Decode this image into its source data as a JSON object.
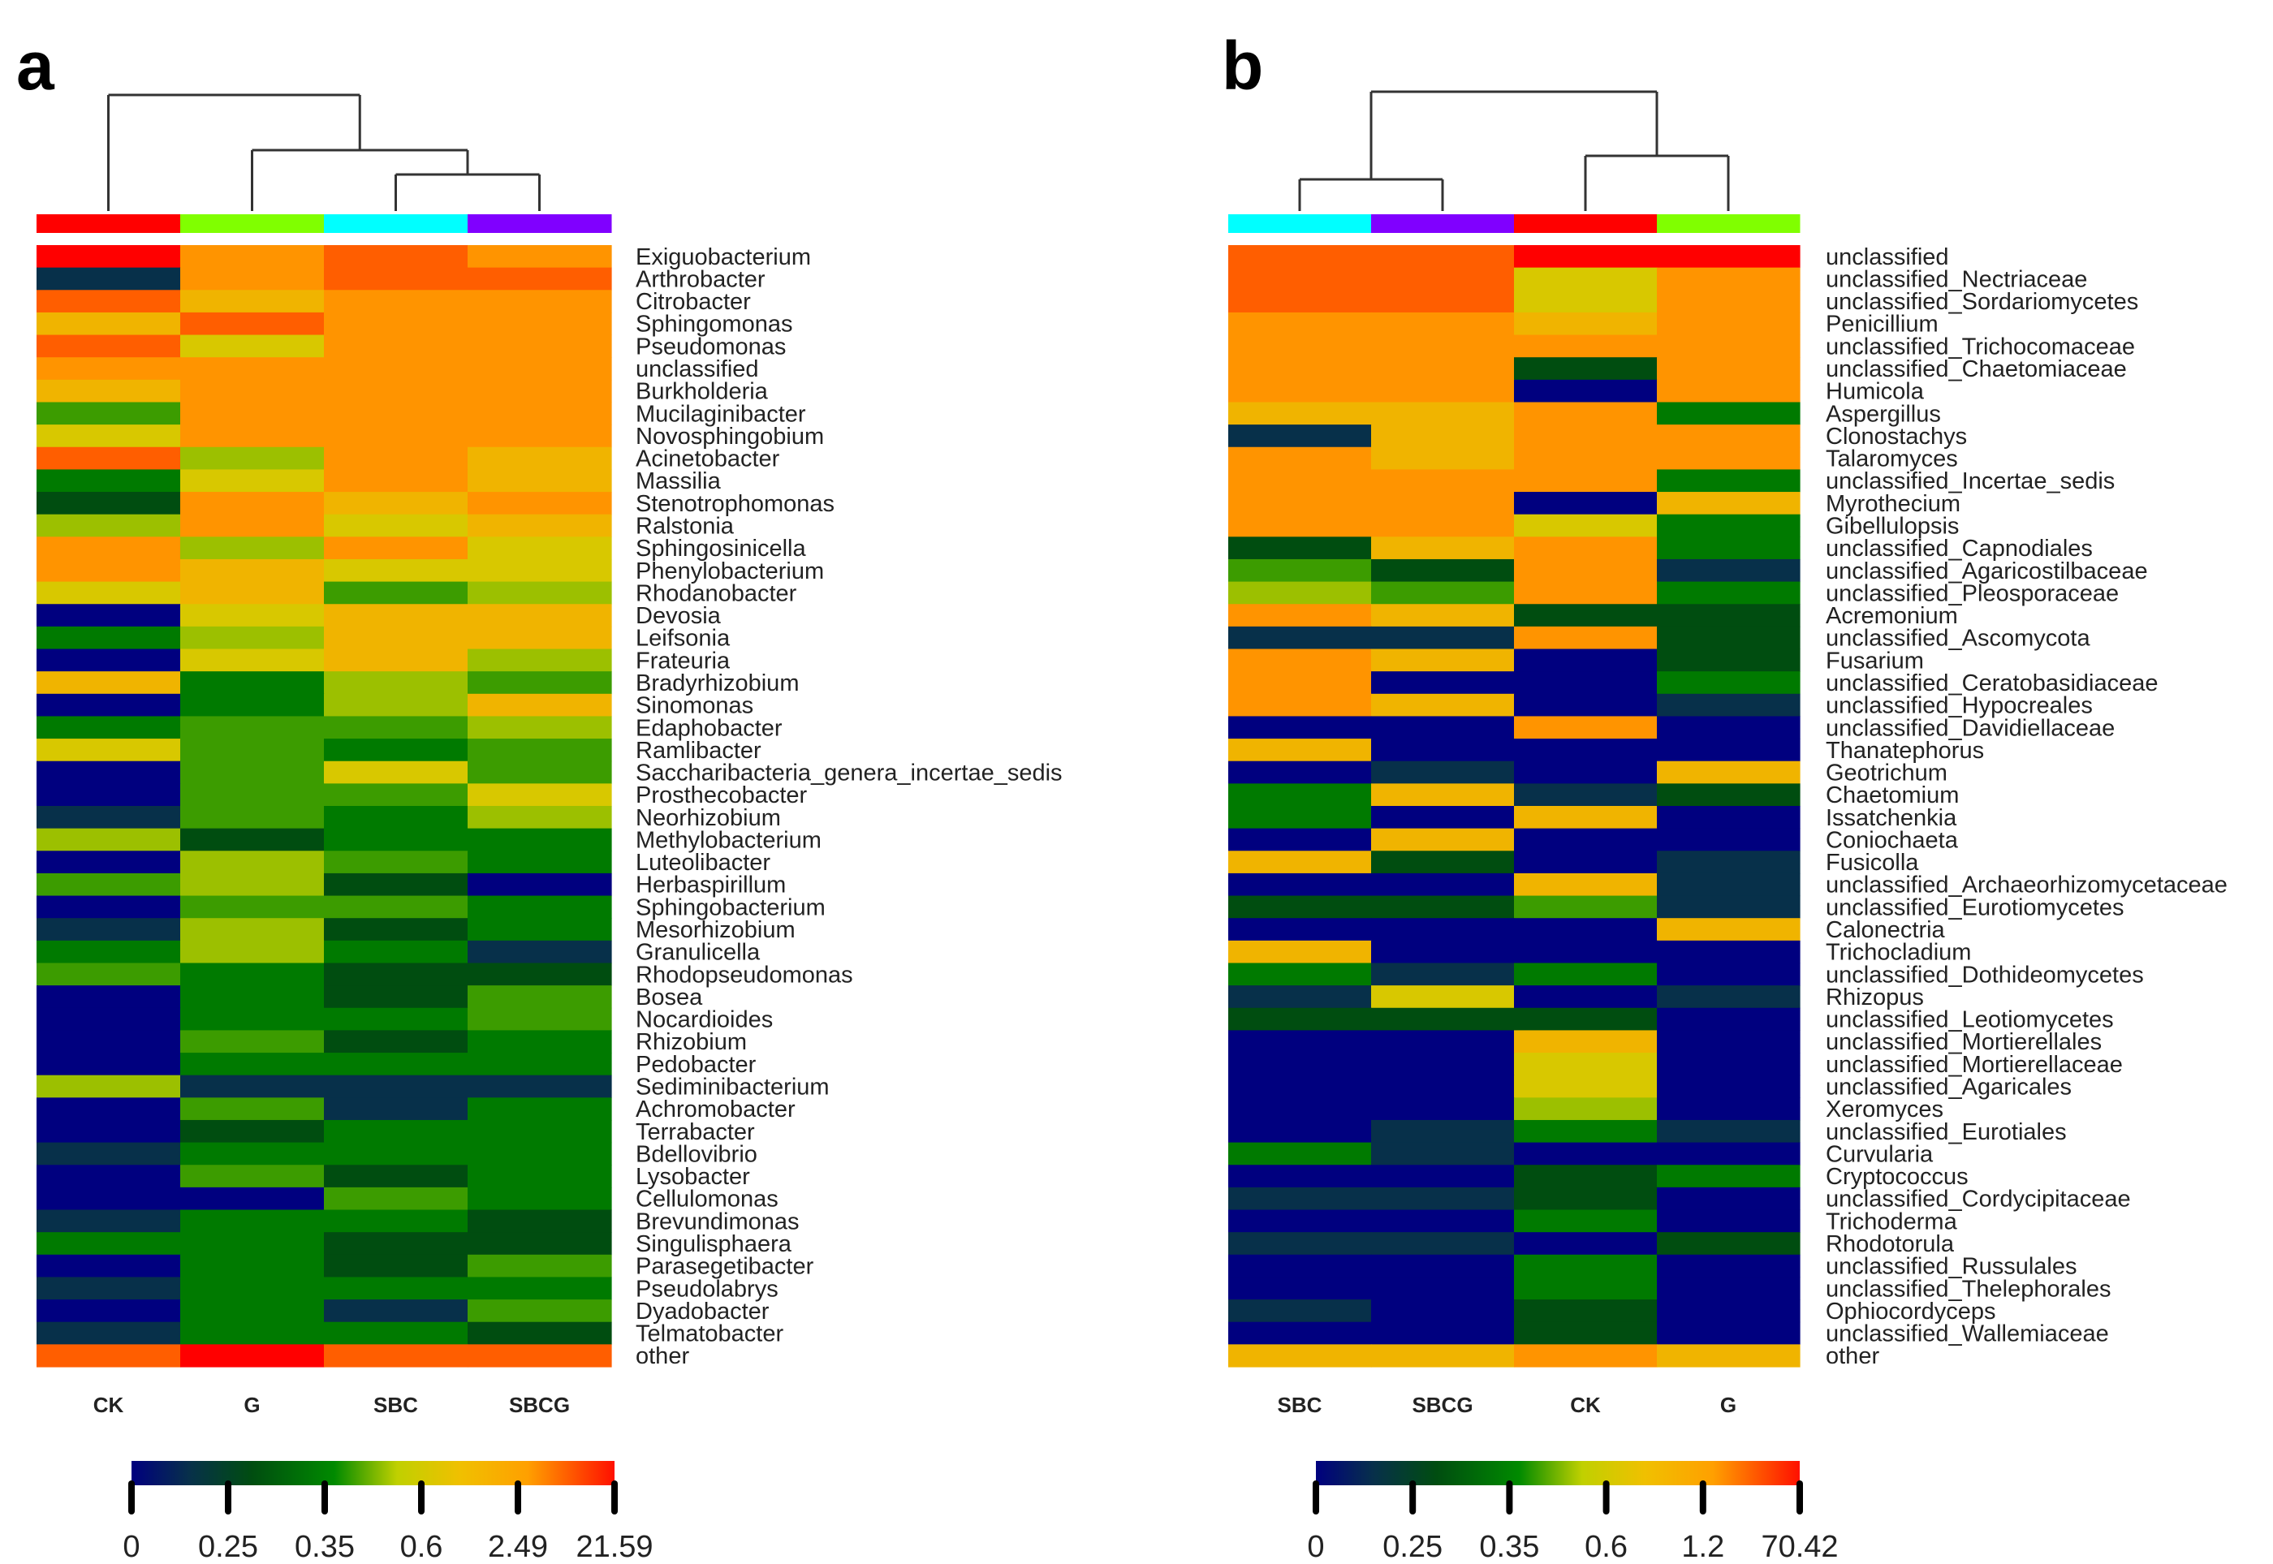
{
  "chart_data": [
    {
      "type": "heatmap",
      "panel_label": "a",
      "value_scale": "color level 0 (lowest, navy) to 10 (highest, red)",
      "columns": [
        "CK",
        "G",
        "SBC",
        "SBCG"
      ],
      "column_group_colors": [
        "#ff0000",
        "#80ff00",
        "#00ffff",
        "#8000ff"
      ],
      "dendrogram": "(CK,(G,(SBC,SBCG)))",
      "legend_ticks": [
        "0",
        "0.25",
        "0.35",
        "0.6",
        "2.49",
        "21.59"
      ],
      "rows": [
        "Exiguobacterium",
        "Arthrobacter",
        "Citrobacter",
        "Sphingomonas",
        "Pseudomonas",
        "unclassified",
        "Burkholderia",
        "Mucilaginibacter",
        "Novosphingobium",
        "Acinetobacter",
        "Massilia",
        "Stenotrophomonas",
        "Ralstonia",
        "Sphingosinicella",
        "Phenylobacterium",
        "Rhodanobacter",
        "Devosia",
        "Leifsonia",
        "Frateuria",
        "Bradyrhizobium",
        "Sinomonas",
        "Edaphobacter",
        "Ramlibacter",
        "Saccharibacteria_genera_incertae_sedis",
        "Prosthecobacter",
        "Neorhizobium",
        "Methylobacterium",
        "Luteolibacter",
        "Herbaspirillum",
        "Sphingobacterium",
        "Mesorhizobium",
        "Granulicella",
        "Rhodopseudomonas",
        "Bosea",
        "Nocardioides",
        "Rhizobium",
        "Pedobacter",
        "Sediminibacterium",
        "Achromobacter",
        "Terrabacter",
        "Bdellovibrio",
        "Lysobacter",
        "Cellulomonas",
        "Brevundimonas",
        "Singulisphaera",
        "Parasegetibacter",
        "Pseudolabrys",
        "Dyadobacter",
        "Telmatobacter",
        "other"
      ],
      "values": [
        [
          10,
          8,
          9,
          8
        ],
        [
          1,
          8,
          9,
          9
        ],
        [
          9,
          7,
          8,
          8
        ],
        [
          7,
          9,
          8,
          8
        ],
        [
          9,
          6,
          8,
          8
        ],
        [
          8,
          8,
          8,
          8
        ],
        [
          7,
          8,
          8,
          8
        ],
        [
          4,
          8,
          8,
          8
        ],
        [
          6,
          8,
          8,
          8
        ],
        [
          9,
          5,
          8,
          7
        ],
        [
          3,
          6,
          8,
          7
        ],
        [
          2,
          8,
          7,
          8
        ],
        [
          5,
          8,
          6,
          7
        ],
        [
          8,
          5,
          8,
          6
        ],
        [
          8,
          7,
          6,
          6
        ],
        [
          6,
          7,
          4,
          5
        ],
        [
          0,
          6,
          7,
          7
        ],
        [
          3,
          5,
          7,
          7
        ],
        [
          0,
          6,
          7,
          5
        ],
        [
          7,
          3,
          5,
          4
        ],
        [
          0,
          3,
          5,
          7
        ],
        [
          3,
          4,
          4,
          5
        ],
        [
          6,
          4,
          3,
          4
        ],
        [
          0,
          4,
          6,
          4
        ],
        [
          0,
          4,
          4,
          6
        ],
        [
          1,
          4,
          3,
          5
        ],
        [
          5,
          2,
          3,
          3
        ],
        [
          0,
          5,
          4,
          3
        ],
        [
          4,
          5,
          2,
          0
        ],
        [
          0,
          4,
          4,
          3
        ],
        [
          1,
          5,
          2,
          3
        ],
        [
          3,
          5,
          3,
          1
        ],
        [
          4,
          3,
          2,
          2
        ],
        [
          0,
          3,
          2,
          4
        ],
        [
          0,
          3,
          3,
          4
        ],
        [
          0,
          4,
          2,
          3
        ],
        [
          0,
          3,
          3,
          3
        ],
        [
          5,
          1,
          1,
          1
        ],
        [
          0,
          4,
          1,
          3
        ],
        [
          0,
          2,
          3,
          3
        ],
        [
          1,
          3,
          3,
          3
        ],
        [
          0,
          4,
          2,
          3
        ],
        [
          0,
          0,
          4,
          3
        ],
        [
          1,
          3,
          3,
          2
        ],
        [
          3,
          3,
          2,
          2
        ],
        [
          0,
          3,
          2,
          4
        ],
        [
          1,
          3,
          3,
          3
        ],
        [
          0,
          3,
          1,
          4
        ],
        [
          1,
          3,
          3,
          2
        ],
        [
          9,
          10,
          9,
          9
        ]
      ]
    },
    {
      "type": "heatmap",
      "panel_label": "b",
      "value_scale": "color level 0 (lowest, navy) to 10 (highest, red)",
      "columns": [
        "SBC",
        "SBCG",
        "CK",
        "G"
      ],
      "column_group_colors": [
        "#00ffff",
        "#8000ff",
        "#ff0000",
        "#80ff00"
      ],
      "dendrogram": "((SBC,SBCG),(CK,G))",
      "legend_ticks": [
        "0",
        "0.25",
        "0.35",
        "0.6",
        "1.2",
        "70.42"
      ],
      "rows": [
        "unclassified",
        "unclassified_Nectriaceae",
        "unclassified_Sordariomycetes",
        "Penicillium",
        "unclassified_Trichocomaceae",
        "unclassified_Chaetomiaceae",
        "Humicola",
        "Aspergillus",
        "Clonostachys",
        "Talaromyces",
        "unclassified_Incertae_sedis",
        "Myrothecium",
        "Gibellulopsis",
        "unclassified_Capnodiales",
        "unclassified_Agaricostilbaceae",
        "unclassified_Pleosporaceae",
        "Acremonium",
        "unclassified_Ascomycota",
        "Fusarium",
        "unclassified_Ceratobasidiaceae",
        "unclassified_Hypocreales",
        "unclassified_Davidiellaceae",
        "Thanatephorus",
        "Geotrichum",
        "Chaetomium",
        "Issatchenkia",
        "Coniochaeta",
        "Fusicolla",
        "unclassified_Archaeorhizomycetaceae",
        "unclassified_Eurotiomycetes",
        "Calonectria",
        "Trichocladium",
        "unclassified_Dothideomycetes",
        "Rhizopus",
        "unclassified_Leotiomycetes",
        "unclassified_Mortierellales",
        "unclassified_Mortierellaceae",
        "unclassified_Agaricales",
        "Xeromyces",
        "unclassified_Eurotiales",
        "Curvularia",
        "Cryptococcus",
        "unclassified_Cordycipitaceae",
        "Trichoderma",
        "Rhodotorula",
        "unclassified_Russulales",
        "unclassified_Thelephorales",
        "Ophiocordyceps",
        "unclassified_Wallemiaceae",
        "other"
      ],
      "values": [
        [
          9,
          9,
          10,
          10
        ],
        [
          9,
          9,
          6,
          8
        ],
        [
          9,
          9,
          6,
          8
        ],
        [
          8,
          8,
          7,
          8
        ],
        [
          8,
          8,
          8,
          8
        ],
        [
          8,
          8,
          2,
          8
        ],
        [
          8,
          8,
          0,
          8
        ],
        [
          7,
          7,
          8,
          3
        ],
        [
          1,
          7,
          8,
          8
        ],
        [
          8,
          7,
          8,
          8
        ],
        [
          8,
          8,
          8,
          3
        ],
        [
          8,
          8,
          0,
          7
        ],
        [
          8,
          8,
          6,
          3
        ],
        [
          2,
          7,
          8,
          3
        ],
        [
          4,
          2,
          8,
          1
        ],
        [
          5,
          4,
          8,
          3
        ],
        [
          8,
          7,
          2,
          2
        ],
        [
          1,
          1,
          8,
          2
        ],
        [
          8,
          7,
          0,
          2
        ],
        [
          8,
          0,
          0,
          3
        ],
        [
          8,
          7,
          0,
          1
        ],
        [
          0,
          0,
          8,
          0
        ],
        [
          7,
          0,
          0,
          0
        ],
        [
          0,
          1,
          0,
          7
        ],
        [
          3,
          7,
          1,
          2
        ],
        [
          3,
          0,
          7,
          0
        ],
        [
          0,
          7,
          0,
          0
        ],
        [
          7,
          2,
          0,
          1
        ],
        [
          0,
          0,
          7,
          1
        ],
        [
          2,
          2,
          4,
          1
        ],
        [
          0,
          0,
          0,
          7
        ],
        [
          7,
          0,
          0,
          0
        ],
        [
          3,
          1,
          3,
          0
        ],
        [
          1,
          6,
          0,
          1
        ],
        [
          2,
          2,
          2,
          0
        ],
        [
          0,
          0,
          7,
          0
        ],
        [
          0,
          0,
          6,
          0
        ],
        [
          0,
          0,
          6,
          0
        ],
        [
          0,
          0,
          5,
          0
        ],
        [
          0,
          1,
          3,
          1
        ],
        [
          3,
          1,
          0,
          0
        ],
        [
          0,
          0,
          2,
          3
        ],
        [
          1,
          1,
          2,
          0
        ],
        [
          0,
          0,
          3,
          0
        ],
        [
          1,
          1,
          0,
          2
        ],
        [
          0,
          0,
          3,
          0
        ],
        [
          0,
          0,
          3,
          0
        ],
        [
          1,
          0,
          2,
          0
        ],
        [
          0,
          0,
          2,
          0
        ],
        [
          7,
          7,
          8,
          7
        ]
      ]
    }
  ],
  "palette": [
    "#00007f",
    "#07304a",
    "#004d10",
    "#007a00",
    "#3c9c00",
    "#9cc000",
    "#d8c800",
    "#f0b400",
    "#ff9400",
    "#ff5e00",
    "#ff0000"
  ]
}
